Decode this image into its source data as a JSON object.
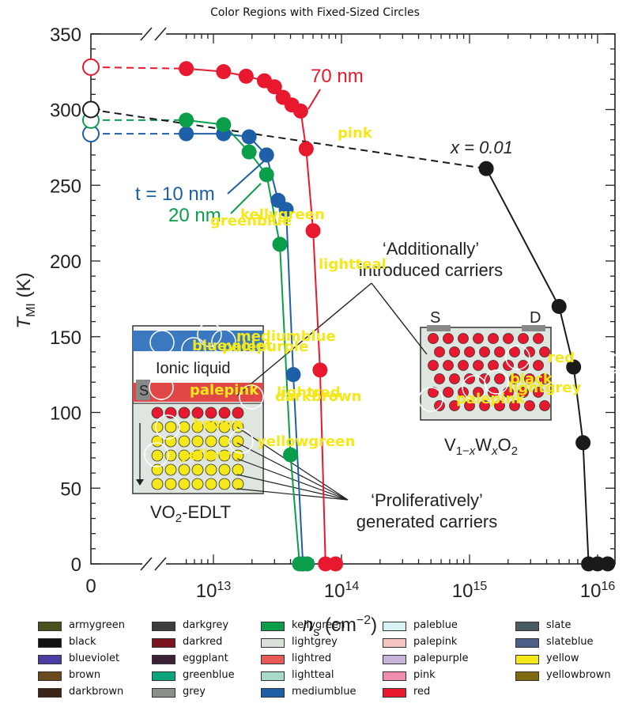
{
  "chart_data": {
    "type": "scatter",
    "title": "Color Regions with Fixed-Sized Circles",
    "figure_text": {
      "y_axis_label": "T_MI (K)",
      "x_axis_label": "n_s (cm^-2)",
      "x_ticks": [
        "0",
        "10^13",
        "10^14",
        "10^15",
        "10^16"
      ],
      "y_ticks": [
        "0",
        "50",
        "100",
        "150",
        "200",
        "250",
        "300",
        "350"
      ],
      "curve_labels": [
        "70 nm",
        "x = 0.01",
        "t = 10 nm",
        "20 nm"
      ],
      "annotations": [
        "‘Additionally’ introduced carriers",
        "‘Proliferatively’ generated carriers",
        "Ionic liquid",
        "VO2-EDLT",
        "V1−xWxO2",
        "S",
        "D",
        "S"
      ]
    },
    "series": [
      {
        "label": "70 nm",
        "color": "#e8192e",
        "points": [
          [
            "0",
            328
          ],
          [
            "6e12",
            327
          ],
          [
            "1.2e13",
            325
          ],
          [
            "1.8e13",
            322
          ],
          [
            "2.5e13",
            319
          ],
          [
            "3e13",
            315
          ],
          [
            "3.5e13",
            308
          ],
          [
            "4.1e13",
            303
          ],
          [
            "4.8e13",
            299
          ],
          [
            "5.3e13",
            274
          ],
          [
            "6e13",
            220
          ],
          [
            "6.8e13",
            128
          ],
          [
            "7.5e13",
            0
          ],
          [
            "9e13",
            0
          ]
        ]
      },
      {
        "label": "t = 10 nm",
        "color": "#1e5fa8",
        "points": [
          [
            "0",
            284
          ],
          [
            "6e12",
            284
          ],
          [
            "1.2e13",
            284
          ],
          [
            "1.9e13",
            282
          ],
          [
            "2.6e13",
            270
          ],
          [
            "3.2e13",
            240
          ],
          [
            "3.7e13",
            234
          ],
          [
            "4.2e13",
            125
          ],
          [
            "5e13",
            0
          ]
        ]
      },
      {
        "label": "20 nm",
        "color": "#0a9e4a",
        "points": [
          [
            "0",
            293
          ],
          [
            "6e12",
            293
          ],
          [
            "1.2e13",
            290
          ],
          [
            "1.9e13",
            272
          ],
          [
            "2.6e13",
            257
          ],
          [
            "3.3e13",
            211
          ],
          [
            "4e13",
            72
          ],
          [
            "4.7e13",
            0
          ],
          [
            "5.4e13",
            0
          ]
        ]
      },
      {
        "label": "x = 0.01",
        "color": "#1a1a1a",
        "points": [
          [
            "0",
            300
          ],
          [
            "1.35e15",
            261
          ],
          [
            "5e15",
            170
          ],
          [
            "6.5e15",
            130
          ],
          [
            "7.7e15",
            80
          ],
          [
            "8.5e15",
            0
          ],
          [
            "1e16",
            0
          ],
          [
            "1.2e16",
            0
          ]
        ]
      }
    ],
    "overlay_labels": [
      "pink",
      "kellygreen",
      "greenblue",
      "lightteal",
      "mediumblue",
      "blueviolet",
      "palepurple",
      "palepink",
      "lightred",
      "darkbrown",
      "brown",
      "yellowgreen",
      "yellow",
      "red",
      "black",
      "lightgrey",
      "palepink"
    ],
    "legend": {
      "columns": [
        [
          [
            "armygreen",
            "#4a5220"
          ],
          [
            "black",
            "#111111"
          ],
          [
            "blueviolet",
            "#4b3ea3"
          ],
          [
            "brown",
            "#6b4a1e"
          ],
          [
            "darkbrown",
            "#3a2418"
          ]
        ],
        [
          [
            "darkgrey",
            "#3d3d3d"
          ],
          [
            "darkred",
            "#7a1520"
          ],
          [
            "eggplant",
            "#3d2235"
          ],
          [
            "greenblue",
            "#0aa57a"
          ],
          [
            "grey",
            "#8a8f8a"
          ]
        ],
        [
          [
            "kellygreen",
            "#0a9e4a"
          ],
          [
            "lightgrey",
            "#d8e0d8"
          ],
          [
            "lightred",
            "#e85a58"
          ],
          [
            "lightteal",
            "#a8dcc8"
          ],
          [
            "mediumblue",
            "#1e5fa8"
          ]
        ],
        [
          [
            "paleblue",
            "#d6f2f2"
          ],
          [
            "palepink",
            "#f4c4c0"
          ],
          [
            "palepurple",
            "#c8b4d8"
          ],
          [
            "pink",
            "#f08cb0"
          ],
          [
            "red",
            "#e8192e"
          ]
        ],
        [
          [
            "slate",
            "#4a5a62"
          ],
          [
            "slateblue",
            "#4a5e88"
          ],
          [
            "yellow",
            "#f4e81a"
          ],
          [
            "yellowbrown",
            "#7f6a10"
          ]
        ]
      ]
    }
  }
}
